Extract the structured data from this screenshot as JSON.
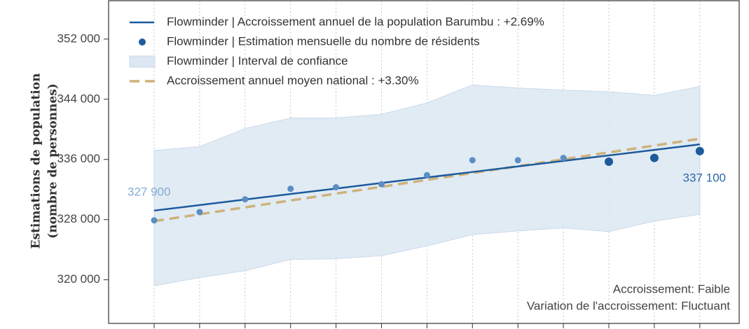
{
  "chart_data": {
    "type": "line",
    "y_label": [
      "Estimations de population",
      "(nombre de personnes)"
    ],
    "categories": [
      null,
      null,
      null,
      null,
      null,
      null,
      null,
      null,
      null,
      null,
      null,
      null,
      null
    ],
    "series": [
      {
        "name": "Flowminder | Accroissement annuel de la population Barumbu : +2.69%",
        "type": "line",
        "color": "#1c5b9c",
        "values": [
          329200,
          329930,
          330670,
          331400,
          332130,
          332870,
          333600,
          334330,
          335070,
          335800,
          336530,
          337270,
          338000
        ]
      },
      {
        "name": "Flowminder | Estimation mensuelle du nombre de résidents",
        "type": "scatter",
        "color": "#5b8ec2",
        "emphasis_color": "#1c5b9c",
        "emphasized_last": 3,
        "values": [
          327900,
          329000,
          330700,
          332100,
          332300,
          332700,
          333900,
          335900,
          335900,
          336200,
          335700,
          336200,
          337100
        ]
      },
      {
        "name": "Flowminder | Interval de confiance",
        "type": "band",
        "color": "#dce7f2",
        "upper": [
          337200,
          337700,
          340100,
          341500,
          341500,
          342000,
          343500,
          345900,
          345500,
          345200,
          345000,
          344500,
          345700
        ],
        "lower": [
          319200,
          320300,
          321200,
          322700,
          322800,
          323200,
          324500,
          326000,
          326500,
          326900,
          326400,
          327800,
          328700
        ]
      },
      {
        "name": "Accroissement annuel moyen national : +3.30%",
        "type": "dashed",
        "color": "#cdb27c",
        "values": [
          327800,
          328710,
          329630,
          330540,
          331450,
          332360,
          333280,
          334190,
          335100,
          336010,
          336930,
          337840,
          338750
        ]
      }
    ],
    "annotations": [
      "327 900",
      "337 100"
    ],
    "notes": [
      "Accroissement: Faible",
      "Variation de l'accroissement: Fluctuant"
    ],
    "ylim": [
      314200,
      357100
    ],
    "yticks": [
      {
        "value": 320000,
        "label": "320 000"
      },
      {
        "value": 328000,
        "label": "328 000"
      },
      {
        "value": 336000,
        "label": "336 000"
      },
      {
        "value": 344000,
        "label": "344 000"
      },
      {
        "value": 352000,
        "label": "352 000"
      }
    ],
    "grid": true,
    "legend": "top-left"
  }
}
